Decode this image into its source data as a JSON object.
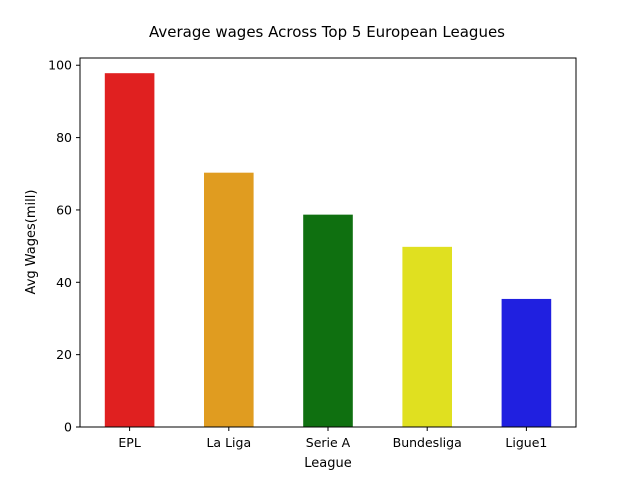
{
  "chart_data": {
    "type": "bar",
    "title": "Average wages Across Top 5 European Leagues",
    "xlabel": "League",
    "ylabel": "Avg Wages(mill)",
    "categories": [
      "EPL",
      "La Liga",
      "Serie A",
      "Bundesliga",
      "Ligue1"
    ],
    "values": [
      97.8,
      70.3,
      58.7,
      49.8,
      35.4
    ],
    "colors": [
      "#e02020",
      "#e09c20",
      "#0f7010",
      "#e0e020",
      "#2020e0"
    ],
    "ylim": [
      0,
      102
    ],
    "yticks": [
      0,
      20,
      40,
      60,
      80,
      100
    ],
    "grid": false,
    "legend": "none"
  }
}
